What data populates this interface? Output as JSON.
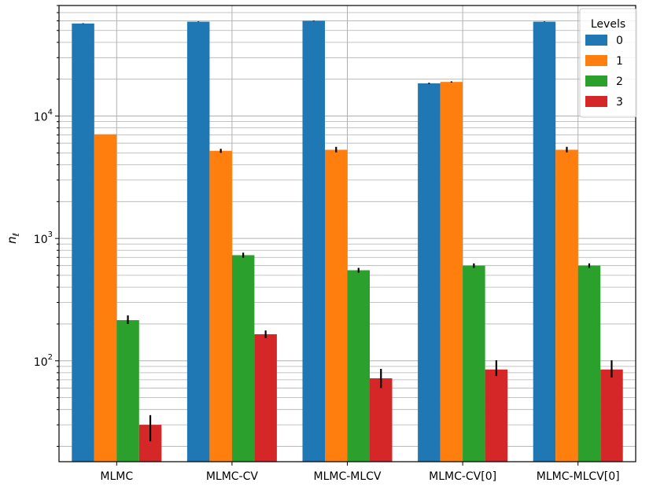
{
  "chart_data": {
    "type": "bar",
    "title": "",
    "xlabel": "",
    "ylabel_base": "n",
    "ylabel_sub": "ℓ",
    "yscale": "log",
    "ylim": [
      15,
      80000
    ],
    "y_ticks": [
      {
        "value": 100,
        "base": "10",
        "exp": "2"
      },
      {
        "value": 1000,
        "base": "10",
        "exp": "3"
      },
      {
        "value": 10000,
        "base": "10",
        "exp": "4"
      }
    ],
    "grid": "on (major and minor)",
    "legend_placement": "top-right",
    "legend_title": "Levels",
    "categories": [
      "MLMC",
      "MLMC-CV",
      "MLMC-MLCV",
      "MLMC-CV[0]",
      "MLMC-MLCV[0]"
    ],
    "series": [
      {
        "name": "0",
        "color": "#1f77b4",
        "values": [
          57000,
          59000,
          60000,
          18500,
          59000
        ],
        "err_low": [
          300,
          300,
          300,
          200,
          300
        ],
        "err_high": [
          300,
          300,
          300,
          200,
          300
        ]
      },
      {
        "name": "1",
        "color": "#ff7f0e",
        "values": [
          7100,
          5200,
          5300,
          19000,
          5300
        ],
        "err_low": [
          0,
          200,
          250,
          200,
          250
        ],
        "err_high": [
          0,
          200,
          300,
          200,
          300
        ]
      },
      {
        "name": "2",
        "color": "#2ca02c",
        "values": [
          215,
          730,
          550,
          600,
          600
        ],
        "err_low": [
          15,
          35,
          25,
          25,
          25
        ],
        "err_high": [
          20,
          35,
          25,
          25,
          25
        ]
      },
      {
        "name": "3",
        "color": "#d62728",
        "values": [
          30,
          165,
          72,
          85,
          85
        ],
        "err_low": [
          8,
          12,
          12,
          10,
          12
        ],
        "err_high": [
          6,
          12,
          14,
          16,
          16
        ]
      }
    ]
  }
}
